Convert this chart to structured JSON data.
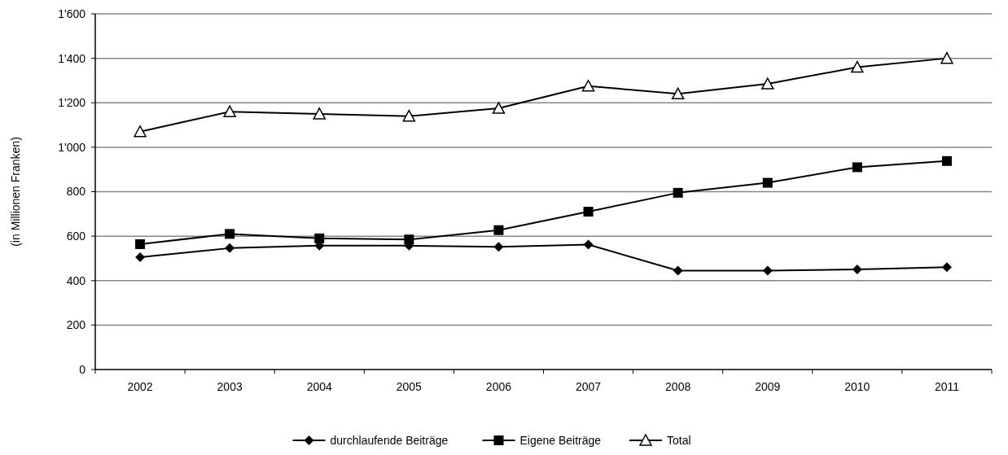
{
  "chart_data": {
    "type": "line",
    "ylabel": "(in Millionen Franken)",
    "categories": [
      "2002",
      "2003",
      "2004",
      "2005",
      "2006",
      "2007",
      "2008",
      "2009",
      "2010",
      "2011"
    ],
    "series": [
      {
        "name": "durchlaufende Beiträge",
        "color": "#000000",
        "marker": "diamond",
        "values": [
          505,
          546,
          557,
          557,
          552,
          562,
          445,
          445,
          450,
          460
        ]
      },
      {
        "name": "Eigene Beiträge",
        "color": "#000000",
        "marker": "square",
        "values": [
          564,
          610,
          590,
          585,
          627,
          710,
          795,
          840,
          910,
          938
        ]
      },
      {
        "name": "Total",
        "color": "#000000",
        "marker": "triangle",
        "values": [
          1070,
          1160,
          1150,
          1140,
          1175,
          1275,
          1240,
          1285,
          1360,
          1400
        ]
      }
    ],
    "ylim": [
      0,
      1600
    ],
    "yticks": [
      0,
      200,
      400,
      600,
      800,
      {
        "value": 1000,
        "label": "1'000"
      },
      {
        "value": 1200,
        "label": "1'200"
      },
      {
        "value": 1400,
        "label": "1'400"
      },
      {
        "value": 1600,
        "label": "1'600"
      }
    ],
    "grid": "y",
    "legend": "bottom",
    "line_style": "solid"
  }
}
